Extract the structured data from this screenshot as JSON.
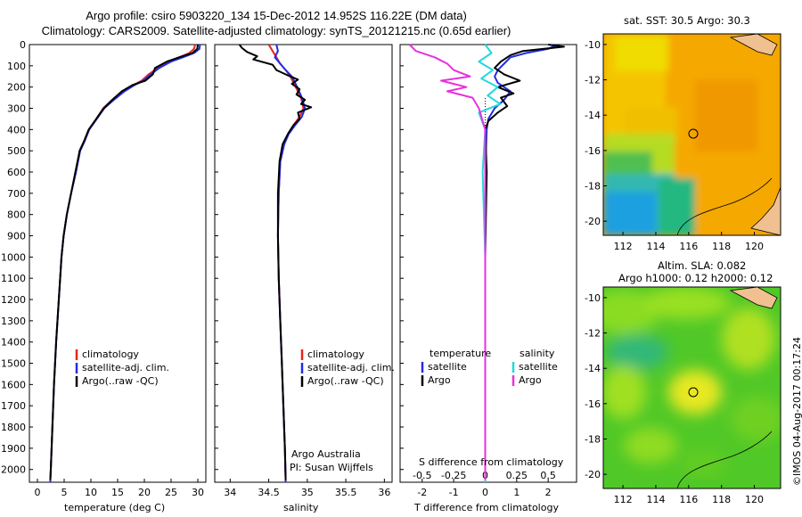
{
  "header": {
    "line1": "Argo profile: csiro 5903220_134 15-Dec-2012 14.952S 116.22E (DM data)",
    "line2": "Climatology: CARS2009. Satellite-adjusted climatology: synTS_20121215.nc (0.65d earlier)"
  },
  "colors": {
    "clim": "#e8231f",
    "sat": "#1f2ee6",
    "argo": "#000000",
    "tsat": "#1f2ee6",
    "ssat": "#22d8dc",
    "sargo": "#e830e0"
  },
  "depth_axis": {
    "min": 0,
    "max": 2060,
    "ticks": [
      "0",
      "100",
      "200",
      "300",
      "400",
      "500",
      "600",
      "700",
      "800",
      "900",
      "1000",
      "1100",
      "1200",
      "1300",
      "1400",
      "1500",
      "1600",
      "1700",
      "1800",
      "1900",
      "2000"
    ]
  },
  "chart_data": [
    {
      "type": "line",
      "panel": "temperature",
      "xlabel": "temperature (deg C)",
      "xlim": [
        -1.5,
        31.5
      ],
      "xticks": [
        "0",
        "5",
        "10",
        "15",
        "20",
        "25",
        "30"
      ],
      "legend": [
        "climatology",
        "satellite-adj. clim.",
        "Argo(..raw -QC)"
      ],
      "series": [
        {
          "name": "climatology",
          "color_key": "clim",
          "points": [
            [
              29.5,
              0
            ],
            [
              29.3,
              20
            ],
            [
              28.4,
              40
            ],
            [
              26.5,
              60
            ],
            [
              24.5,
              80
            ],
            [
              22.5,
              110
            ],
            [
              20.8,
              140
            ],
            [
              19.5,
              170
            ],
            [
              18.0,
              190
            ],
            [
              16.0,
              220
            ],
            [
              14.0,
              260
            ],
            [
              12.3,
              300
            ],
            [
              11.0,
              350
            ],
            [
              9.6,
              400
            ],
            [
              8.8,
              450
            ],
            [
              7.9,
              500
            ],
            [
              7.2,
              600
            ],
            [
              6.3,
              700
            ],
            [
              5.5,
              800
            ],
            [
              4.9,
              900
            ],
            [
              4.5,
              1000
            ],
            [
              4.0,
              1200
            ],
            [
              3.5,
              1400
            ],
            [
              3.1,
              1600
            ],
            [
              2.8,
              1800
            ],
            [
              2.5,
              2000
            ],
            [
              2.4,
              2060
            ]
          ]
        },
        {
          "name": "satellite-adj. clim.",
          "color_key": "sat",
          "points": [
            [
              30.4,
              0
            ],
            [
              30.3,
              20
            ],
            [
              29.3,
              40
            ],
            [
              27.2,
              60
            ],
            [
              25.0,
              80
            ],
            [
              22.8,
              110
            ],
            [
              21.2,
              140
            ],
            [
              19.8,
              170
            ],
            [
              18.2,
              190
            ],
            [
              16.3,
              220
            ],
            [
              14.3,
              260
            ],
            [
              12.5,
              300
            ],
            [
              11.1,
              350
            ],
            [
              9.7,
              400
            ],
            [
              8.9,
              450
            ],
            [
              8.0,
              500
            ],
            [
              7.2,
              600
            ],
            [
              6.3,
              700
            ],
            [
              5.5,
              800
            ],
            [
              4.9,
              900
            ],
            [
              4.5,
              1000
            ],
            [
              4.0,
              1200
            ],
            [
              3.5,
              1400
            ],
            [
              3.1,
              1600
            ],
            [
              2.8,
              1800
            ],
            [
              2.5,
              2000
            ],
            [
              2.4,
              2060
            ]
          ]
        },
        {
          "name": "Argo(..raw -QC)",
          "color_key": "argo",
          "points": [
            [
              30.0,
              0
            ],
            [
              29.9,
              20
            ],
            [
              29.0,
              40
            ],
            [
              26.5,
              60
            ],
            [
              24.2,
              80
            ],
            [
              22.0,
              110
            ],
            [
              21.6,
              140
            ],
            [
              20.2,
              170
            ],
            [
              17.8,
              190
            ],
            [
              15.8,
              220
            ],
            [
              14.0,
              260
            ],
            [
              12.4,
              300
            ],
            [
              11.0,
              350
            ],
            [
              9.6,
              400
            ],
            [
              8.8,
              450
            ],
            [
              7.9,
              500
            ],
            [
              7.1,
              600
            ],
            [
              6.3,
              700
            ],
            [
              5.5,
              800
            ],
            [
              4.9,
              900
            ],
            [
              4.5,
              1000
            ],
            [
              4.0,
              1200
            ],
            [
              3.5,
              1400
            ],
            [
              3.1,
              1600
            ],
            [
              2.8,
              1800
            ],
            [
              2.5,
              2000
            ],
            [
              2.4,
              2050
            ]
          ]
        }
      ]
    },
    {
      "type": "line",
      "panel": "salinity",
      "xlabel": "salinity",
      "xlim": [
        33.8,
        36.1
      ],
      "xticks": [
        "34",
        "34.5",
        "35",
        "35.5",
        "36"
      ],
      "legend": [
        "climatology",
        "satellite-adj. clim.",
        "Argo(..raw -QC)"
      ],
      "annotation": [
        "Argo Australia",
        "PI: Susan Wijffels"
      ],
      "series": [
        {
          "name": "climatology",
          "color_key": "clim",
          "points": [
            [
              34.5,
              0
            ],
            [
              34.55,
              30
            ],
            [
              34.6,
              60
            ],
            [
              34.65,
              90
            ],
            [
              34.72,
              120
            ],
            [
              34.78,
              150
            ],
            [
              34.85,
              200
            ],
            [
              34.92,
              250
            ],
            [
              34.95,
              300
            ],
            [
              34.9,
              340
            ],
            [
              34.82,
              380
            ],
            [
              34.75,
              420
            ],
            [
              34.7,
              470
            ],
            [
              34.65,
              550
            ],
            [
              34.63,
              700
            ],
            [
              34.62,
              900
            ],
            [
              34.63,
              1100
            ],
            [
              34.65,
              1300
            ],
            [
              34.67,
              1500
            ],
            [
              34.69,
              1700
            ],
            [
              34.71,
              1900
            ],
            [
              34.72,
              2060
            ]
          ]
        },
        {
          "name": "satellite-adj. clim.",
          "color_key": "sat",
          "points": [
            [
              34.6,
              0
            ],
            [
              34.62,
              30
            ],
            [
              34.58,
              60
            ],
            [
              34.65,
              90
            ],
            [
              34.72,
              120
            ],
            [
              34.8,
              150
            ],
            [
              34.87,
              200
            ],
            [
              34.93,
              250
            ],
            [
              34.97,
              300
            ],
            [
              34.93,
              340
            ],
            [
              34.84,
              380
            ],
            [
              34.76,
              420
            ],
            [
              34.7,
              470
            ],
            [
              34.65,
              550
            ],
            [
              34.63,
              700
            ],
            [
              34.62,
              900
            ],
            [
              34.63,
              1100
            ],
            [
              34.65,
              1300
            ],
            [
              34.67,
              1500
            ],
            [
              34.69,
              1700
            ],
            [
              34.71,
              1900
            ],
            [
              34.72,
              2060
            ]
          ]
        },
        {
          "name": "Argo(..raw -QC)",
          "color_key": "argo",
          "points": [
            [
              34.12,
              0
            ],
            [
              34.15,
              15
            ],
            [
              34.22,
              35
            ],
            [
              34.35,
              55
            ],
            [
              34.3,
              70
            ],
            [
              34.55,
              95
            ],
            [
              34.6,
              120
            ],
            [
              34.75,
              145
            ],
            [
              34.88,
              165
            ],
            [
              34.8,
              185
            ],
            [
              34.9,
              210
            ],
            [
              34.86,
              235
            ],
            [
              34.97,
              260
            ],
            [
              34.92,
              280
            ],
            [
              35.05,
              295
            ],
            [
              34.88,
              320
            ],
            [
              34.9,
              350
            ],
            [
              34.82,
              380
            ],
            [
              34.75,
              420
            ],
            [
              34.68,
              470
            ],
            [
              34.64,
              550
            ],
            [
              34.62,
              700
            ],
            [
              34.62,
              900
            ],
            [
              34.63,
              1100
            ],
            [
              34.65,
              1300
            ],
            [
              34.67,
              1500
            ],
            [
              34.69,
              1700
            ],
            [
              34.71,
              1900
            ],
            [
              34.72,
              2050
            ]
          ]
        }
      ]
    },
    {
      "type": "line",
      "panel": "differences",
      "xlabel": "T difference from climatology",
      "xlabel2": "S difference from climatology",
      "xlim": [
        -2.7,
        2.9
      ],
      "xticks": [
        "-2",
        "-1",
        "0",
        "1",
        "2"
      ],
      "xticks2": [
        "-0.5",
        "-0.25",
        "0",
        "0.25",
        "0.5"
      ],
      "legend_titles": [
        "temperature",
        "salinity"
      ],
      "legend": [
        "satellite",
        "Argo",
        "satellite",
        "Argo"
      ],
      "series": [
        {
          "name": "T satellite",
          "color_key": "tsat",
          "points": [
            [
              2.3,
              0
            ],
            [
              2.0,
              20
            ],
            [
              1.3,
              40
            ],
            [
              0.8,
              60
            ],
            [
              0.6,
              90
            ],
            [
              0.4,
              120
            ],
            [
              0.3,
              150
            ],
            [
              0.4,
              180
            ],
            [
              0.8,
              220
            ],
            [
              0.6,
              260
            ],
            [
              0.3,
              300
            ],
            [
              0.1,
              350
            ],
            [
              0.05,
              400
            ],
            [
              0.0,
              600
            ],
            [
              0.0,
              1000
            ],
            [
              0.0,
              2060
            ]
          ]
        },
        {
          "name": "T Argo",
          "color_key": "argo",
          "points": [
            [
              2.0,
              0
            ],
            [
              2.5,
              10
            ],
            [
              1.2,
              30
            ],
            [
              0.8,
              50
            ],
            [
              0.5,
              80
            ],
            [
              0.3,
              110
            ],
            [
              0.6,
              140
            ],
            [
              1.1,
              170
            ],
            [
              0.4,
              200
            ],
            [
              0.9,
              230
            ],
            [
              0.5,
              250
            ],
            [
              0.7,
              290
            ],
            [
              0.4,
              320
            ],
            [
              0.1,
              360
            ],
            [
              0.0,
              400
            ],
            [
              0.05,
              600
            ],
            [
              0.0,
              1000
            ],
            [
              0.0,
              2050
            ]
          ]
        },
        {
          "name": "S satellite",
          "color_key": "ssat",
          "points": [
            [
              0.0,
              0
            ],
            [
              0.05,
              40
            ],
            [
              -0.05,
              80
            ],
            [
              0.06,
              120
            ],
            [
              -0.03,
              160
            ],
            [
              0.1,
              200
            ],
            [
              0.02,
              240
            ],
            [
              0.12,
              280
            ],
            [
              -0.05,
              320
            ],
            [
              0.0,
              400
            ],
            [
              -0.02,
              600
            ],
            [
              0.0,
              1000
            ],
            [
              0.0,
              2060
            ]
          ]
        },
        {
          "name": "S Argo",
          "color_key": "sargo",
          "points": [
            [
              -0.6,
              0
            ],
            [
              -0.55,
              30
            ],
            [
              -0.4,
              60
            ],
            [
              -0.3,
              90
            ],
            [
              -0.25,
              120
            ],
            [
              -0.12,
              150
            ],
            [
              -0.35,
              170
            ],
            [
              -0.15,
              200
            ],
            [
              -0.3,
              220
            ],
            [
              -0.1,
              250
            ],
            [
              -0.05,
              300
            ],
            [
              0.0,
              400
            ],
            [
              0.0,
              1000
            ],
            [
              0.0,
              2050
            ]
          ]
        }
      ]
    }
  ],
  "map_sst": {
    "title": "sat. SST: 30.5  Argo: 30.3",
    "xticks": [
      "112",
      "114",
      "116",
      "118",
      "120"
    ],
    "yticks": [
      "-10",
      "-12",
      "-14",
      "-16",
      "-18",
      "-20"
    ]
  },
  "map_sla": {
    "title1": "Altim. SLA: 0.082",
    "title2": "Argo h1000: 0.12 h2000: 0.12",
    "xticks": [
      "112",
      "114",
      "116",
      "118",
      "120"
    ],
    "yticks": [
      "-10",
      "-12",
      "-14",
      "-16",
      "-18",
      "-20"
    ]
  },
  "footer": {
    "credit": "©IMOS 04-Aug-2017 00:17:24"
  }
}
